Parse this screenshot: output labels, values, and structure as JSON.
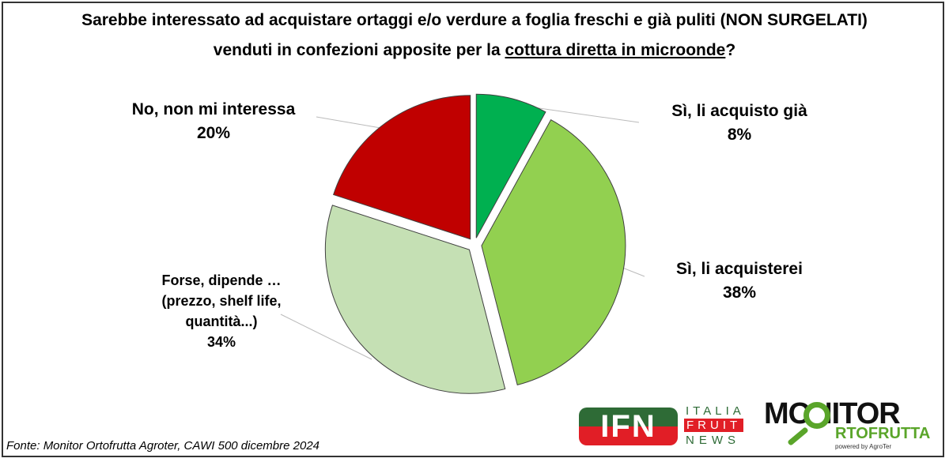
{
  "chart_data": {
    "type": "pie",
    "title_line1": "Sarebbe interessato ad acquistare ortaggi e/o verdure a foglia freschi e già puliti (NON SURGELATI)",
    "title_line2_a": "venduti in confezioni apposite per la ",
    "title_line2_u": "cottura diretta in microonde",
    "title_line2_b": "?",
    "slices": [
      {
        "label": "Sì, li acquisto già",
        "value": 8,
        "value_label": "8%",
        "color": "#00b050"
      },
      {
        "label": "Sì, li acquisterei",
        "value": 38,
        "value_label": "38%",
        "color": "#92d050"
      },
      {
        "label_lines": [
          "Forse, dipende …",
          "(prezzo, shelf life,",
          "quantità...)"
        ],
        "value": 34,
        "value_label": "34%",
        "color": "#c5e0b4"
      },
      {
        "label": "No, non mi interessa",
        "value": 20,
        "value_label": "20%",
        "color": "#c00000"
      }
    ]
  },
  "source": "Fonte: Monitor Ortofrutta Agroter, CAWI 500 dicembre 2024",
  "logos": {
    "ifn": {
      "mark": "IFN",
      "lines": [
        "ITALIA",
        "FRUIT",
        "NEWS"
      ]
    },
    "monitor": {
      "line1": "MONITOR",
      "line2": "RTOFRUTTA",
      "powered": "powered by AgroTer"
    }
  }
}
